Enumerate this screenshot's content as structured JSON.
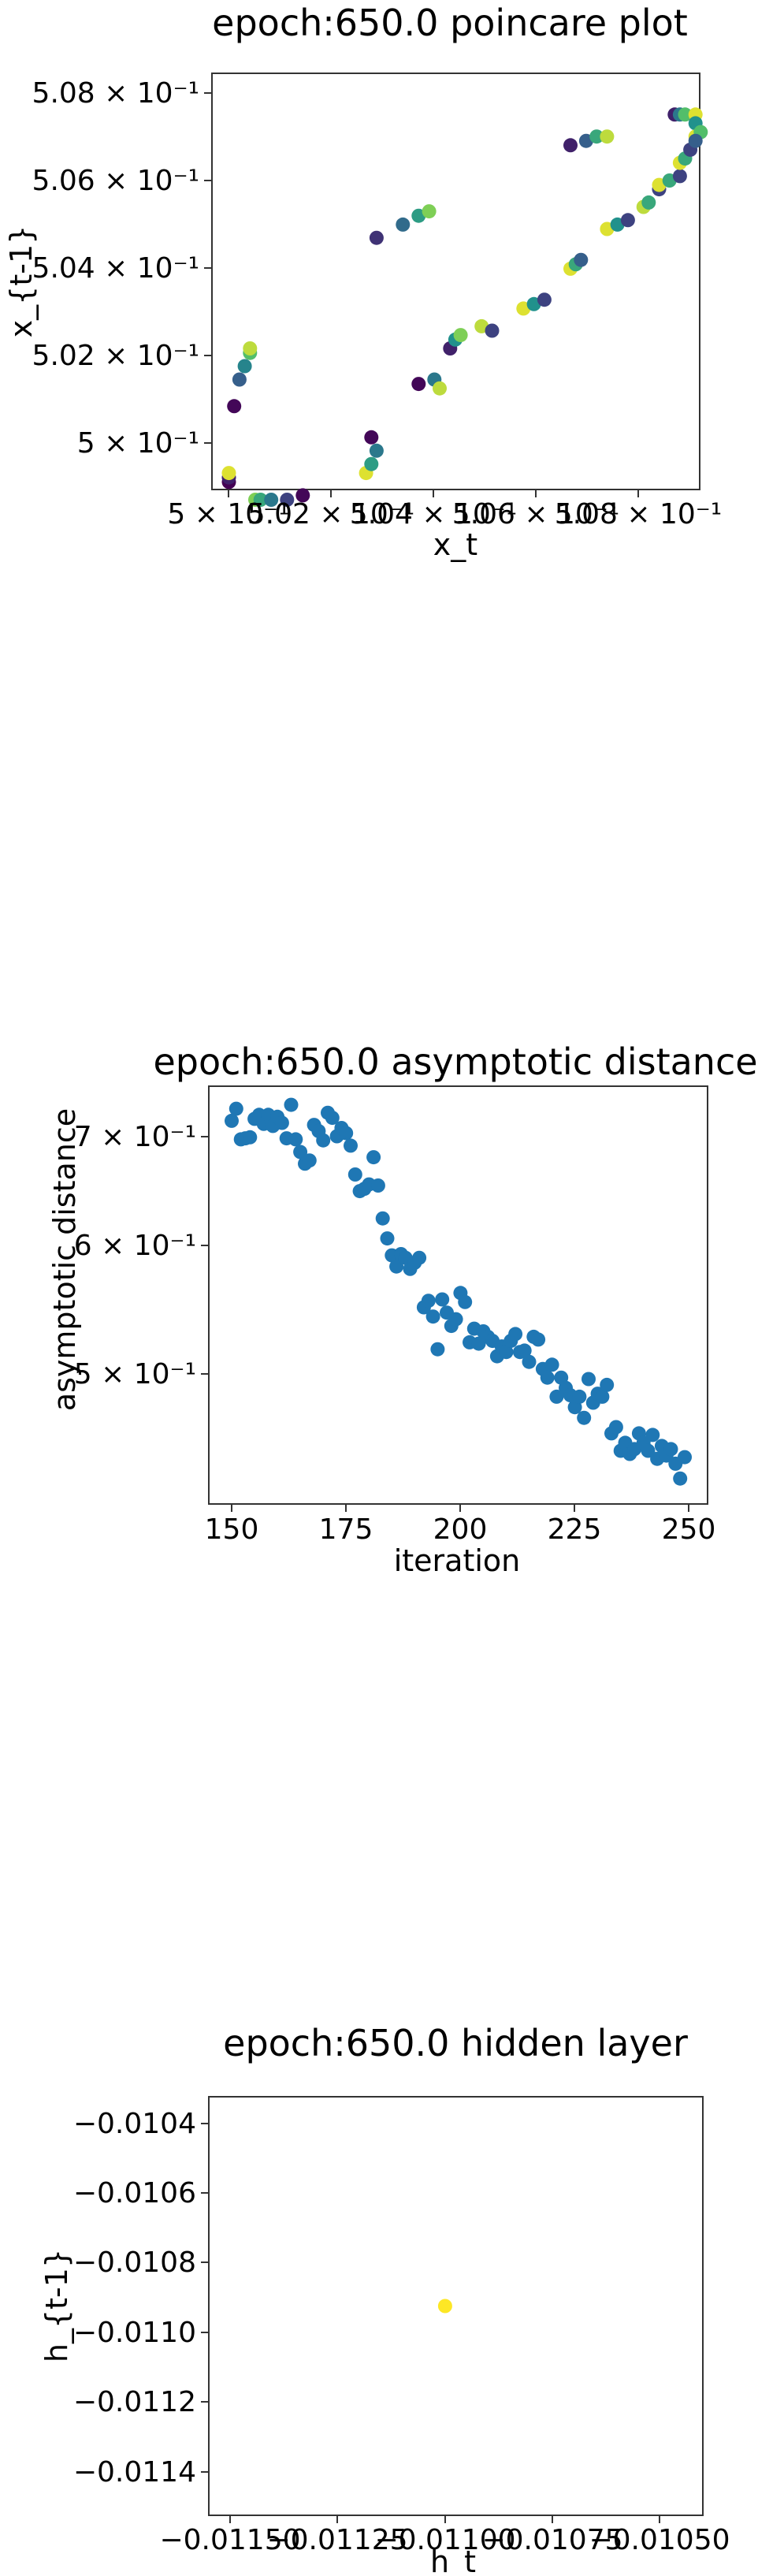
{
  "charts": {
    "poincare": {
      "title": "epoch:650.0 poincare plot",
      "xlabel": "x_t",
      "ylabel": "x_{t-1}",
      "xtick_labels": [
        "5 × 10⁻¹",
        "5.02 × 10⁻¹",
        "5.04 × 10⁻¹",
        "5.06 × 10⁻¹",
        "5.08 × 10⁻¹"
      ],
      "ytick_labels": [
        "5 × 10⁻¹",
        "5.02 × 10⁻¹",
        "5.04 × 10⁻¹",
        "5.06 × 10⁻¹",
        "5.08 × 10⁻¹"
      ]
    },
    "asymptotic": {
      "title": "epoch:650.0 asymptotic distance",
      "xlabel": "iteration",
      "ylabel": "asymptotic distance",
      "xtick_labels": [
        "150",
        "175",
        "200",
        "225",
        "250"
      ],
      "ytick_labels": [
        "7 × 10⁻¹",
        "6 × 10⁻¹",
        "5 × 10⁻¹"
      ]
    },
    "hidden": {
      "title": "epoch:650.0 hidden layer",
      "xlabel": "h_t",
      "ylabel": "h_{t-1}",
      "xtick_labels": [
        "−0.01150",
        "−0.01125",
        "−0.01100",
        "−0.01075",
        "−0.01050"
      ],
      "ytick_labels": [
        "−0.0104",
        "−0.0106",
        "−0.0108",
        "−0.0110",
        "−0.0112",
        "−0.0114"
      ]
    }
  },
  "chart_data": [
    {
      "type": "scatter",
      "title": "epoch:650.0 poincare plot",
      "xlabel": "x_t",
      "ylabel": "x_{t-1}",
      "xscale": "log",
      "yscale": "log",
      "xlim": [
        0.49968,
        0.50898
      ],
      "ylim": [
        0.49963,
        0.50904
      ],
      "colormap": "viridis",
      "grid": false,
      "points": [
        [
          0.5,
          0.4998,
          0.0
        ],
        [
          0.5,
          0.4999,
          0.1
        ],
        [
          0.5,
          0.5,
          0.95
        ],
        [
          0.5001,
          0.5015,
          0.02
        ],
        [
          0.5002,
          0.5021,
          0.3
        ],
        [
          0.5003,
          0.5024,
          0.45
        ],
        [
          0.5004,
          0.5027,
          0.7
        ],
        [
          0.5004,
          0.5028,
          0.9
        ],
        [
          0.5005,
          0.4994,
          0.8
        ],
        [
          0.5006,
          0.4994,
          0.6
        ],
        [
          0.5008,
          0.4994,
          0.4
        ],
        [
          0.5011,
          0.4994,
          0.2
        ],
        [
          0.5014,
          0.4995,
          0.02
        ],
        [
          0.5026,
          0.5,
          0.95
        ],
        [
          0.5027,
          0.5002,
          0.55
        ],
        [
          0.5027,
          0.5008,
          0.02
        ],
        [
          0.5028,
          0.5005,
          0.4
        ],
        [
          0.5028,
          0.5053,
          0.15
        ],
        [
          0.5033,
          0.5056,
          0.35
        ],
        [
          0.5036,
          0.5058,
          0.55
        ],
        [
          0.5038,
          0.5059,
          0.8
        ],
        [
          0.5036,
          0.502,
          0.02
        ],
        [
          0.5039,
          0.5021,
          0.4
        ],
        [
          0.504,
          0.5019,
          0.9
        ],
        [
          0.5042,
          0.5028,
          0.1
        ],
        [
          0.5043,
          0.503,
          0.5
        ],
        [
          0.5044,
          0.5031,
          0.8
        ],
        [
          0.5048,
          0.5033,
          0.9
        ],
        [
          0.505,
          0.5032,
          0.2
        ],
        [
          0.5056,
          0.5037,
          0.95
        ],
        [
          0.5058,
          0.5038,
          0.5
        ],
        [
          0.506,
          0.5039,
          0.2
        ],
        [
          0.5065,
          0.5046,
          0.95
        ],
        [
          0.5066,
          0.5047,
          0.6
        ],
        [
          0.5067,
          0.5048,
          0.3
        ],
        [
          0.5065,
          0.5074,
          0.1
        ],
        [
          0.5068,
          0.5075,
          0.3
        ],
        [
          0.507,
          0.5076,
          0.6
        ],
        [
          0.5072,
          0.5076,
          0.9
        ],
        [
          0.5072,
          0.5055,
          0.95
        ],
        [
          0.5074,
          0.5056,
          0.5
        ],
        [
          0.5076,
          0.5057,
          0.2
        ],
        [
          0.5079,
          0.506,
          0.9
        ],
        [
          0.508,
          0.5061,
          0.6
        ],
        [
          0.5082,
          0.5064,
          0.2
        ],
        [
          0.5082,
          0.5065,
          0.95
        ],
        [
          0.5084,
          0.5066,
          0.6
        ],
        [
          0.5086,
          0.5067,
          0.2
        ],
        [
          0.5086,
          0.507,
          0.95
        ],
        [
          0.5087,
          0.5071,
          0.6
        ],
        [
          0.5088,
          0.5073,
          0.2
        ],
        [
          0.5085,
          0.5081,
          0.1
        ],
        [
          0.5086,
          0.5081,
          0.4
        ],
        [
          0.5087,
          0.5081,
          0.7
        ],
        [
          0.5089,
          0.5081,
          0.95
        ],
        [
          0.5089,
          0.5079,
          0.5
        ],
        [
          0.5089,
          0.5076,
          0.95
        ],
        [
          0.509,
          0.5077,
          0.7
        ],
        [
          0.5089,
          0.5075,
          0.3
        ]
      ]
    },
    {
      "type": "scatter",
      "title": "epoch:650.0 asymptotic distance",
      "xlabel": "iteration",
      "ylabel": "asymptotic distance",
      "yscale": "log",
      "xlim": [
        145,
        254
      ],
      "ylim": [
        0.417,
        0.745
      ],
      "color": "#1f77b4",
      "grid": false,
      "x": [
        150,
        151,
        152,
        153,
        154,
        155,
        156,
        157,
        158,
        159,
        160,
        161,
        162,
        163,
        164,
        165,
        166,
        167,
        168,
        169,
        170,
        171,
        172,
        173,
        174,
        175,
        176,
        177,
        178,
        179,
        180,
        181,
        182,
        183,
        184,
        185,
        186,
        187,
        188,
        189,
        190,
        191,
        192,
        193,
        194,
        195,
        196,
        197,
        198,
        199,
        200,
        201,
        202,
        203,
        204,
        205,
        206,
        207,
        208,
        209,
        210,
        211,
        212,
        213,
        214,
        215,
        216,
        217,
        218,
        219,
        220,
        221,
        222,
        223,
        224,
        225,
        226,
        227,
        228,
        229,
        230,
        231,
        232,
        233,
        234,
        235,
        236,
        237,
        238,
        239,
        240,
        241,
        242,
        243,
        244,
        245,
        246,
        247,
        248,
        249
      ],
      "y": [
        0.71,
        0.722,
        0.692,
        0.693,
        0.694,
        0.712,
        0.716,
        0.707,
        0.716,
        0.705,
        0.714,
        0.708,
        0.693,
        0.726,
        0.692,
        0.68,
        0.669,
        0.672,
        0.706,
        0.7,
        0.691,
        0.718,
        0.713,
        0.695,
        0.703,
        0.698,
        0.686,
        0.659,
        0.644,
        0.646,
        0.65,
        0.675,
        0.649,
        0.62,
        0.603,
        0.589,
        0.58,
        0.59,
        0.587,
        0.578,
        0.583,
        0.587,
        0.548,
        0.553,
        0.541,
        0.517,
        0.554,
        0.544,
        0.534,
        0.539,
        0.559,
        0.552,
        0.522,
        0.532,
        0.521,
        0.53,
        0.526,
        0.523,
        0.512,
        0.519,
        0.515,
        0.523,
        0.528,
        0.515,
        0.516,
        0.508,
        0.526,
        0.524,
        0.503,
        0.497,
        0.506,
        0.484,
        0.497,
        0.49,
        0.485,
        0.477,
        0.484,
        0.47,
        0.496,
        0.48,
        0.486,
        0.484,
        0.492,
        0.46,
        0.464,
        0.449,
        0.454,
        0.447,
        0.45,
        0.46,
        0.454,
        0.449,
        0.459,
        0.444,
        0.452,
        0.446,
        0.45,
        0.441,
        0.432,
        0.445
      ]
    },
    {
      "type": "scatter",
      "title": "epoch:650.0 hidden layer",
      "xlabel": "h_t",
      "ylabel": "h_{t-1}",
      "xlim": [
        -0.01155,
        -0.0104
      ],
      "ylim": [
        -0.01152,
        -0.01032
      ],
      "color": "#fde725",
      "grid": false,
      "points": [
        [
          -0.011,
          -0.01092
        ]
      ]
    }
  ]
}
